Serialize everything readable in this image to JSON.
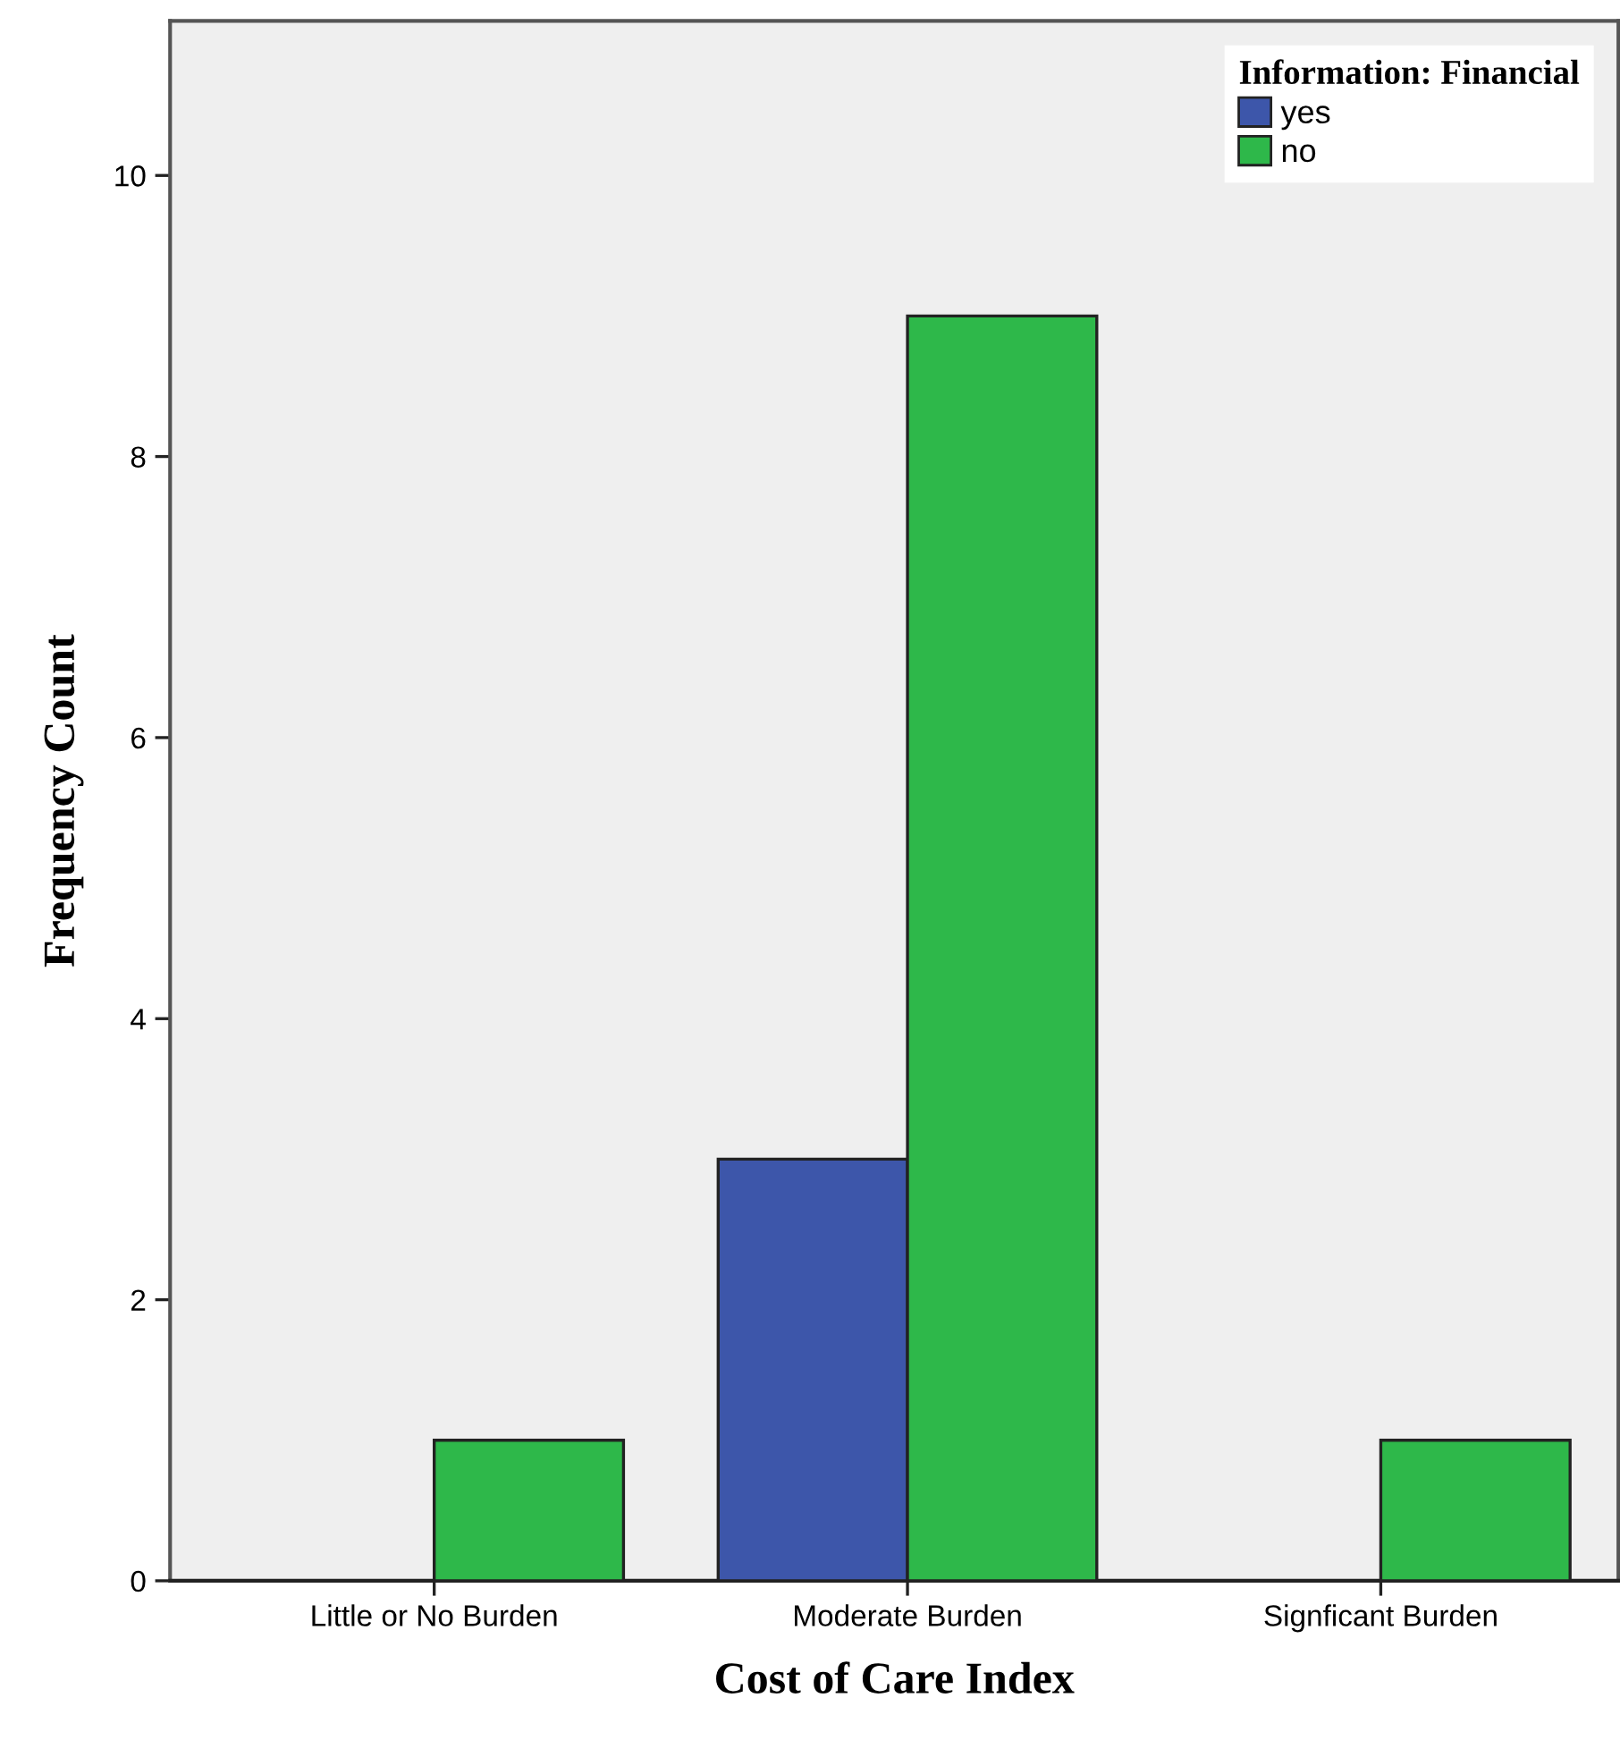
{
  "chart_data": {
    "type": "bar",
    "xlabel": "Cost of Care Index",
    "ylabel": "Frequency Count",
    "legend_title": "Information: Financial",
    "categories": [
      "Little or No Burden",
      "Moderate Burden",
      "Signficant Burden"
    ],
    "series": [
      {
        "name": "yes",
        "color": "#3d56aa",
        "values": [
          null,
          3,
          null
        ]
      },
      {
        "name": "no",
        "color": "#2eb84a",
        "values": [
          1,
          9,
          1
        ]
      }
    ],
    "ylim": [
      0,
      11.1
    ],
    "yticks": [
      0,
      2,
      4,
      6,
      8,
      10
    ],
    "grid": false,
    "legend": "top right"
  }
}
